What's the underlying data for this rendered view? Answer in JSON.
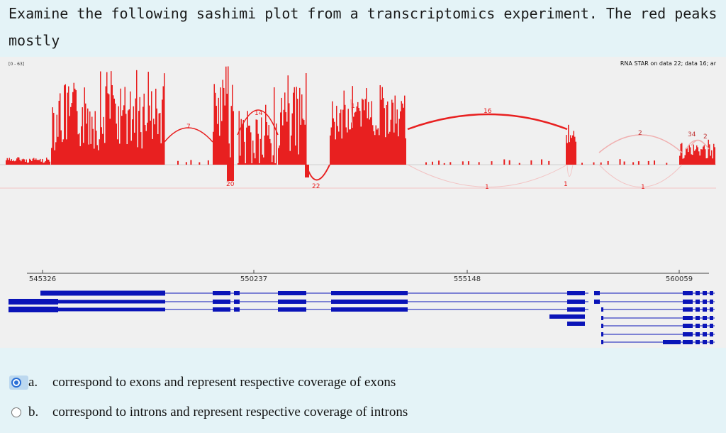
{
  "question": "Examine the following sashimi plot from a transcriptomics experiment. The red peaks mostly",
  "plot": {
    "range_label": "[0 - 63]",
    "track_label": "RNA STAR on data 22; data 16; ar",
    "positions": [
      "545326",
      "550237",
      "555148",
      "560059"
    ],
    "junction_labels_top": [
      "7",
      "14",
      "1",
      "16",
      "2",
      "34",
      "2"
    ],
    "junction_labels_bottom": [
      "20",
      "22",
      "1",
      "1",
      "1"
    ],
    "colors": {
      "coverage": "#e82020",
      "gene": "#0a14b8",
      "background": "#f0f0f0"
    }
  },
  "options": [
    {
      "letter": "a.",
      "text": "correspond to exons and represent respective coverage of exons",
      "selected": true
    },
    {
      "letter": "b.",
      "text": "correspond to introns and represent respective coverage of introns",
      "selected": false
    }
  ]
}
